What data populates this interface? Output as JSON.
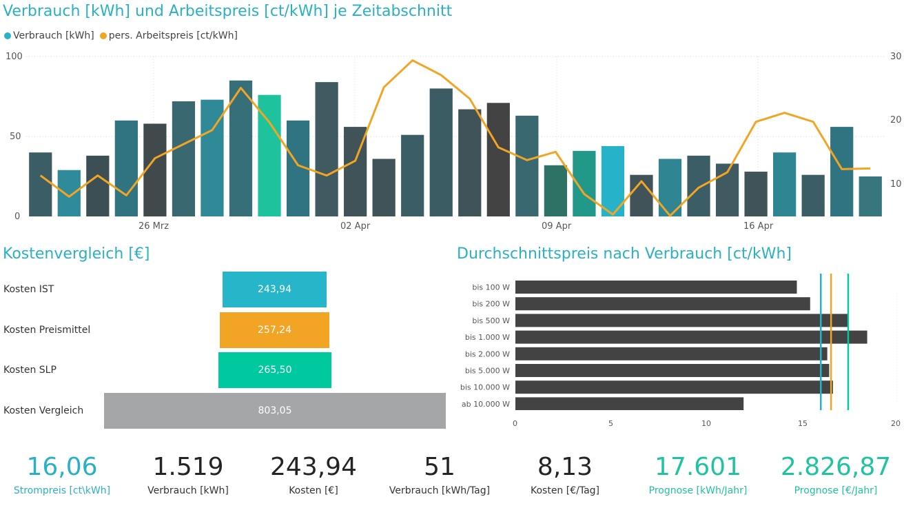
{
  "colors": {
    "title": "#2ab0c5",
    "consumption": "#26b3c9",
    "price": "#f2a524",
    "slp": "#00c9a0",
    "compare": "#a5a6a8",
    "dark_bar": "#434343"
  },
  "chart1": {
    "title": "Verbrauch [kWh] und Arbeitspreis [ct/kWh] je Zeitabschnitt",
    "legend": [
      "Verbrauch [kWh]",
      "pers. Arbeitspreis [ct/kWh]"
    ],
    "y_left_ticks": [
      "100",
      "50",
      "0"
    ],
    "y_right_ticks": [
      "30",
      "20",
      "10"
    ],
    "x_ticks": [
      "26 Mrz",
      "02 Apr",
      "09 Apr",
      "16 Apr"
    ]
  },
  "chart2": {
    "title": "Kostenvergleich [€]",
    "rows": [
      {
        "label": "Kosten IST",
        "value_text": "243,94"
      },
      {
        "label": "Kosten Preismittel",
        "value_text": "257,24"
      },
      {
        "label": "Kosten SLP",
        "value_text": "265,50"
      },
      {
        "label": "Kosten Vergleich",
        "value_text": "803,05"
      }
    ]
  },
  "chart3": {
    "title": "Durchschnittspreis nach Verbrauch [ct/kWh]",
    "x_ticks": [
      "0",
      "5",
      "10",
      "15",
      "20"
    ]
  },
  "chart_data": [
    {
      "type": "bar",
      "title": "Verbrauch [kWh] und Arbeitspreis [ct/kWh] je Zeitabschnitt",
      "xlabel": "",
      "ylabel": "",
      "x_ticks": [
        "26 Mrz",
        "02 Apr",
        "09 Apr",
        "16 Apr"
      ],
      "ylim": [
        0,
        100
      ],
      "y2lim": [
        5,
        30
      ],
      "series": [
        {
          "name": "Verbrauch [kWh]",
          "type": "bar",
          "axis": "left",
          "values": [
            40,
            29,
            38,
            60,
            58,
            72,
            73,
            85,
            76,
            60,
            84,
            56,
            36,
            51,
            80,
            67,
            71,
            63,
            32,
            41,
            44,
            26,
            36,
            38,
            33,
            28,
            40,
            26,
            56,
            25
          ]
        },
        {
          "name": "pers. Arbeitspreis [ct/kWh]",
          "type": "line",
          "axis": "right",
          "values": [
            11.4,
            8.1,
            11.4,
            8.3,
            14.1,
            16.3,
            18.5,
            25.1,
            19.7,
            13.0,
            11.4,
            13.7,
            25.2,
            29.4,
            27.1,
            23.4,
            15.8,
            13.8,
            15.1,
            8.5,
            5.3,
            10.5,
            5.1,
            9.5,
            11.9,
            19.8,
            21.2,
            19.8,
            12.4,
            12.5
          ]
        }
      ],
      "bar_colors": [
        "#3b5e66",
        "#2f8a9a",
        "#3b4f55",
        "#2f7480",
        "#404a4c",
        "#3a6870",
        "#2f8996",
        "#366f78",
        "#1ec39e",
        "#2f7480",
        "#3f5a60",
        "#405358",
        "#405358",
        "#3b5e66",
        "#3b5c62",
        "#405358",
        "#434343",
        "#3a6870",
        "#2e7266",
        "#22988a",
        "#26b3c9",
        "#405358",
        "#2f8592",
        "#3b5e66",
        "#3f5a60",
        "#405358",
        "#2f8592",
        "#3b5e66",
        "#2f7480",
        "#38767e"
      ]
    },
    {
      "type": "bar",
      "title": "Kostenvergleich [€]",
      "categories": [
        "Kosten IST",
        "Kosten Preismittel",
        "Kosten SLP",
        "Kosten Vergleich"
      ],
      "values": [
        243.94,
        257.24,
        265.5,
        803.05
      ],
      "orientation": "horizontal-funnel"
    },
    {
      "type": "bar",
      "title": "Durchschnittspreis nach Verbrauch [ct/kWh]",
      "categories": [
        "bis 100 W",
        "bis 200 W",
        "bis 500 W",
        "bis 1.000 W",
        "bis 2.000 W",
        "bis 5.000 W",
        "bis 10.000 W",
        "ab 10.000 W"
      ],
      "values": [
        14.8,
        15.5,
        17.5,
        18.5,
        16.4,
        16.5,
        16.7,
        12.0
      ],
      "xlim": [
        0,
        20
      ],
      "reference_lines": [
        {
          "value": 16.06,
          "color": "#26b3c9"
        },
        {
          "value": 16.6,
          "color": "#f2a524"
        },
        {
          "value": 17.5,
          "color": "#00c9a0"
        }
      ],
      "orientation": "horizontal"
    }
  ],
  "kpis": [
    {
      "value": "16,06",
      "label": "Strompreis [ct\\kWh]",
      "color": "#2ab0c5"
    },
    {
      "value": "1.519",
      "label": "Verbrauch [kWh]",
      "color": "#252423"
    },
    {
      "value": "243,94",
      "label": "Kosten [€]",
      "color": "#252423"
    },
    {
      "value": "51",
      "label": "Verbrauch [kWh/Tag]",
      "color": "#252423"
    },
    {
      "value": "8,13",
      "label": "Kosten [€/Tag]",
      "color": "#252423"
    },
    {
      "value": "17.601",
      "label": "Prognose [kWh/Jahr]",
      "color": "#1fc3a0"
    },
    {
      "value": "2.826,87",
      "label": "Prognose [€/Jahr]",
      "color": "#1fc3a0"
    }
  ]
}
